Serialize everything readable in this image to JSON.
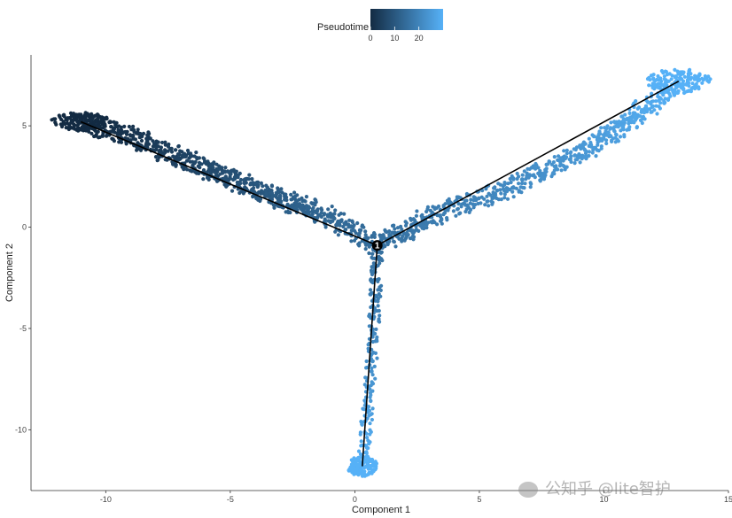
{
  "chart_data": {
    "type": "scatter",
    "xlabel": "Component 1",
    "ylabel": "Component 2",
    "xlim": [
      -13,
      15
    ],
    "ylim": [
      -13,
      8.5
    ],
    "x_ticks": [
      -10,
      -5,
      0,
      5,
      10,
      15
    ],
    "y_ticks": [
      -10,
      -5,
      0,
      5
    ],
    "grid": false,
    "legend": {
      "title": "Pseudotime",
      "placement": "top-center",
      "type": "colorbar",
      "range": [
        0,
        30
      ],
      "ticks": [
        0,
        10,
        20
      ],
      "color_low": "#132b43",
      "color_high": "#56b1f7"
    },
    "trajectory": {
      "branch_point_label": "1",
      "branch_point": [
        0.9,
        -0.9
      ],
      "segments": [
        {
          "name": "left",
          "from": [
            -11,
            5.2
          ],
          "to": [
            0.9,
            -0.9
          ]
        },
        {
          "name": "right",
          "from": [
            0.9,
            -0.9
          ],
          "to": [
            13,
            7.2
          ]
        },
        {
          "name": "bottom",
          "from": [
            0.9,
            -0.9
          ],
          "to": [
            0.3,
            -11.8
          ]
        }
      ]
    },
    "series": [
      {
        "values": [
          {
            "x": -11.0,
            "y": 5.2,
            "pseudotime": 0
          },
          {
            "x": -9.0,
            "y": 4.5,
            "pseudotime": 2
          },
          {
            "x": -7.0,
            "y": 3.4,
            "pseudotime": 5
          },
          {
            "x": -5.0,
            "y": 2.4,
            "pseudotime": 8
          },
          {
            "x": -3.0,
            "y": 1.4,
            "pseudotime": 11
          },
          {
            "x": -1.5,
            "y": 0.8,
            "pseudotime": 13
          },
          {
            "x": 0.9,
            "y": -0.9,
            "pseudotime": 15
          },
          {
            "x": 3.0,
            "y": 0.5,
            "pseudotime": 18
          },
          {
            "x": 6.0,
            "y": 1.8,
            "pseudotime": 21
          },
          {
            "x": 9.0,
            "y": 3.6,
            "pseudotime": 24
          },
          {
            "x": 11.0,
            "y": 5.2,
            "pseudotime": 27
          },
          {
            "x": 13.0,
            "y": 7.2,
            "pseudotime": 30
          },
          {
            "x": 0.8,
            "y": -4.0,
            "pseudotime": 19
          },
          {
            "x": 0.6,
            "y": -8.0,
            "pseudotime": 24
          },
          {
            "x": 0.3,
            "y": -11.8,
            "pseudotime": 30
          }
        ]
      }
    ]
  },
  "watermark": "公知乎 @lite智护"
}
